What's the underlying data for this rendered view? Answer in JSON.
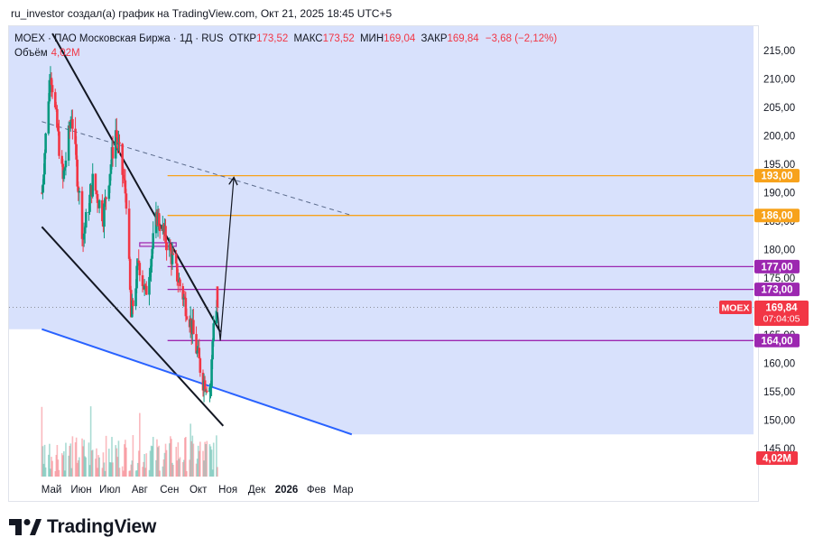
{
  "header": {
    "credit": "ru_investor создал(а) график на TradingView.com, Окт 21, 2025 18:45 UTC+5"
  },
  "legend": {
    "symbol": "MOEX · ПАО Московская Биржа · 1Д · RUS",
    "open_label": "ОТКР",
    "open_value": "173,52",
    "high_label": "МАКС",
    "high_value": "173,52",
    "low_label": "МИН",
    "low_value": "169,04",
    "close_label": "ЗАКР",
    "close_value": "169,84",
    "change": "−3,68 (−2,12%)",
    "volume_label": "Объём",
    "volume_value": "4,02M"
  },
  "footer": {
    "brand": "TradingView"
  },
  "colors": {
    "up": "#089981",
    "down": "#f23645",
    "channel_fill": "#d1dcfb",
    "support_line": "#2962ff",
    "resistance_orange": "#f7a21b",
    "level_purple": "#9c27b0",
    "dashed": "#5b6b8c"
  },
  "chart_data": {
    "type": "candlestick",
    "symbol": "MOEX",
    "timeframe": "1D",
    "x_tick_labels": [
      "Май",
      "Июн",
      "Июл",
      "Авг",
      "Сен",
      "Окт",
      "Ноя",
      "Дек",
      "2026",
      "Фев",
      "Мар"
    ],
    "y_ticks": [
      145,
      150,
      155,
      160,
      165,
      170,
      175,
      180,
      185,
      190,
      195,
      200,
      205,
      210,
      215
    ],
    "ylim": [
      143.5,
      218
    ],
    "price_segments": [
      {
        "from": "2025-04-21",
        "to": "2025-04-30",
        "start": 190,
        "end": 212
      },
      {
        "from": "2025-04-30",
        "to": "2025-05-13",
        "start": 212,
        "end": 192
      },
      {
        "from": "2025-05-13",
        "to": "2025-05-22",
        "start": 192,
        "end": 204
      },
      {
        "from": "2025-05-22",
        "to": "2025-06-03",
        "start": 204,
        "end": 182
      },
      {
        "from": "2025-06-03",
        "to": "2025-06-13",
        "start": 182,
        "end": 192
      },
      {
        "from": "2025-06-13",
        "to": "2025-06-24",
        "start": 192,
        "end": 186
      },
      {
        "from": "2025-06-24",
        "to": "2025-07-07",
        "start": 186,
        "end": 201
      },
      {
        "from": "2025-07-07",
        "to": "2025-07-18",
        "start": 201,
        "end": 189
      },
      {
        "from": "2025-07-18",
        "to": "2025-07-23",
        "start": 189,
        "end": 168
      },
      {
        "from": "2025-07-23",
        "to": "2025-07-31",
        "start": 168,
        "end": 178
      },
      {
        "from": "2025-07-31",
        "to": "2025-08-07",
        "start": 178,
        "end": 172
      },
      {
        "from": "2025-08-07",
        "to": "2025-08-19",
        "start": 172,
        "end": 186
      },
      {
        "from": "2025-08-19",
        "to": "2025-09-01",
        "start": 186,
        "end": 180
      },
      {
        "from": "2025-09-01",
        "to": "2025-09-22",
        "start": 180,
        "end": 168
      },
      {
        "from": "2025-09-22",
        "to": "2025-10-06",
        "start": 168,
        "end": 157
      },
      {
        "from": "2025-10-06",
        "to": "2025-10-14",
        "start": 157,
        "end": 156
      },
      {
        "from": "2025-10-14",
        "to": "2025-10-17",
        "start": 156,
        "end": 168
      },
      {
        "from": "2025-10-17",
        "to": "2025-10-21",
        "start": 168,
        "end": 169.84
      }
    ],
    "last_candle": {
      "open": 173.52,
      "high": 173.52,
      "low": 169.04,
      "close": 169.84
    },
    "last_price": 169.84,
    "last_price_countdown": "07:04:05",
    "volume_last": "4,02M",
    "horizontal_levels": [
      {
        "price": 193.0,
        "label": "193,00",
        "color": "#f7a21b",
        "from": "2025-08-30"
      },
      {
        "price": 186.0,
        "label": "186,00",
        "color": "#f7a21b",
        "from": "2025-08-30"
      },
      {
        "price": 177.0,
        "label": "177,00",
        "color": "#9c27b0",
        "from": "2025-08-30"
      },
      {
        "price": 173.0,
        "label": "173,00",
        "color": "#9c27b0",
        "from": "2025-08-30"
      },
      {
        "price": 164.0,
        "label": "164,00",
        "color": "#9c27b0",
        "from": "2025-08-30"
      }
    ],
    "trend_lines": [
      {
        "style": "solid-black",
        "from": [
          "2025-05-02",
          218
        ],
        "to": [
          "2025-10-24",
          165.5
        ]
      },
      {
        "style": "solid-black",
        "from": [
          "2025-04-21",
          184
        ],
        "to": [
          "2025-10-27",
          149
        ]
      },
      {
        "style": "solid-blue",
        "from": [
          "2025-04-21",
          166
        ],
        "to": [
          "2026-03-10",
          147.5
        ]
      },
      {
        "style": "dashed",
        "from": [
          "2025-04-21",
          202.5
        ],
        "to": [
          "2026-03-10",
          186
        ]
      }
    ],
    "forecast_path": [
      [
        "2025-10-21",
        169
      ],
      [
        "2025-10-24",
        164
      ],
      [
        "2025-11-07",
        192.5
      ]
    ],
    "rectangle": {
      "from": "2025-08-01",
      "to": "2025-09-08",
      "top": 181.2,
      "bottom": 180.6
    },
    "price_label_symbol": "MOEX",
    "legend_placement": "top-left"
  }
}
